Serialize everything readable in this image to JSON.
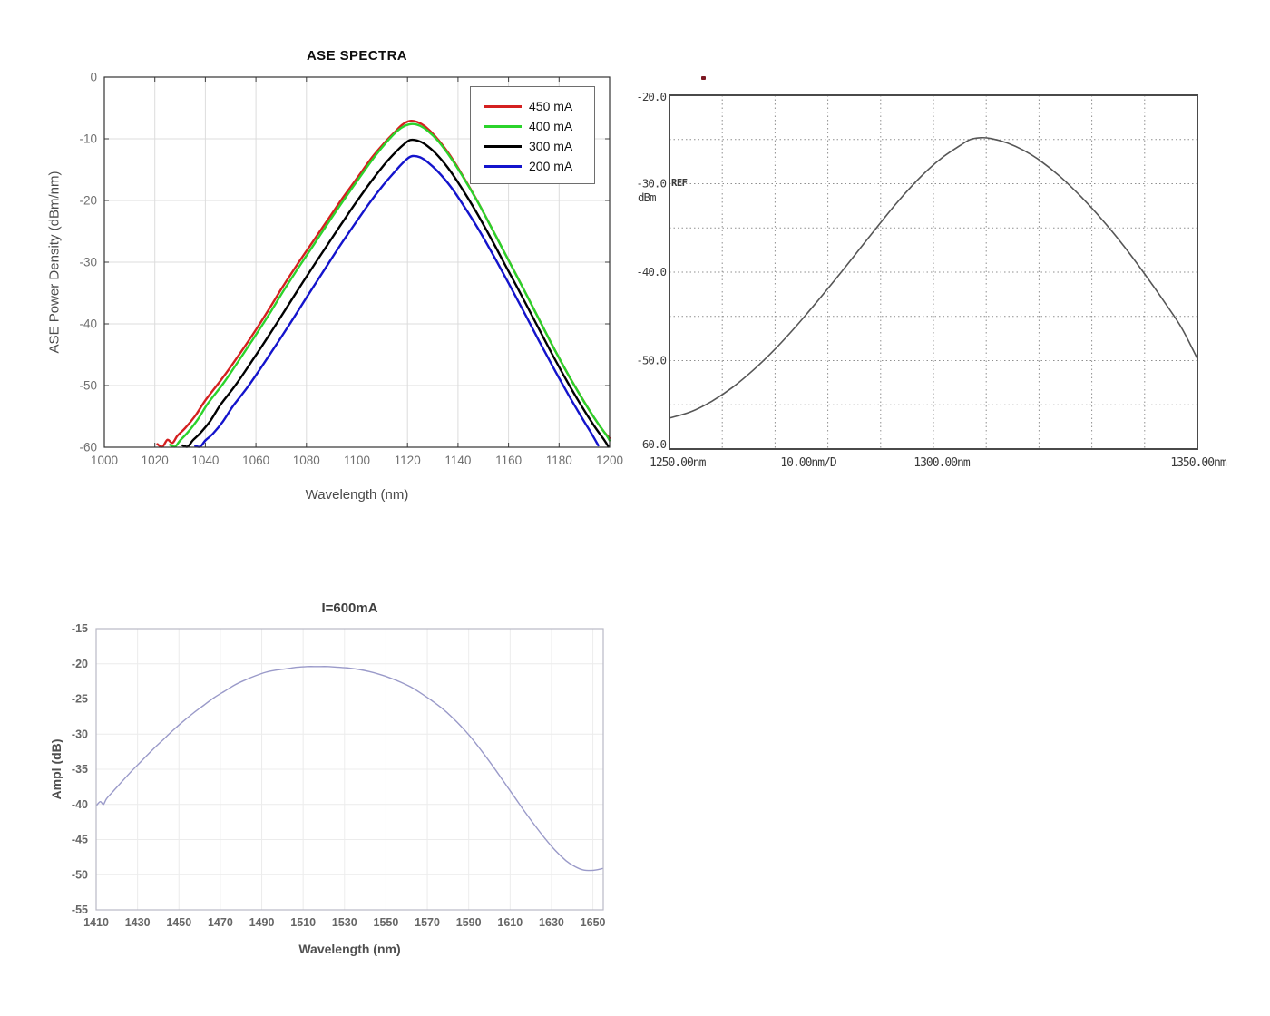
{
  "page": {
    "background": "#ffffff"
  },
  "chart_data": [
    {
      "type": "line",
      "title": "ASE SPECTRA",
      "xlabel": "Wavelength (nm)",
      "ylabel": "ASE Power Density (dBm/nm)",
      "x_range": [
        1000,
        1200
      ],
      "y_range": [
        -60,
        0
      ],
      "x_ticks": [
        1000,
        1020,
        1040,
        1060,
        1080,
        1100,
        1120,
        1140,
        1160,
        1180,
        1200
      ],
      "y_ticks": [
        0,
        -10,
        -20,
        -30,
        -40,
        -50,
        -60
      ],
      "grid": true,
      "legend_position": "top-right",
      "series": [
        {
          "name": "450 mA",
          "color": "#d42020",
          "points": [
            [
              1021,
              -59.5
            ],
            [
              1023,
              -59.9
            ],
            [
              1025,
              -58.8
            ],
            [
              1027,
              -59.3
            ],
            [
              1029,
              -58.1
            ],
            [
              1032,
              -56.9
            ],
            [
              1036,
              -54.9
            ],
            [
              1040,
              -52.4
            ],
            [
              1046,
              -49.2
            ],
            [
              1052,
              -45.8
            ],
            [
              1058,
              -42.2
            ],
            [
              1064,
              -38.4
            ],
            [
              1070,
              -34.4
            ],
            [
              1076,
              -30.6
            ],
            [
              1082,
              -27
            ],
            [
              1088,
              -23.4
            ],
            [
              1094,
              -19.8
            ],
            [
              1100,
              -16.4
            ],
            [
              1106,
              -13
            ],
            [
              1111,
              -10.6
            ],
            [
              1115,
              -8.9
            ],
            [
              1118,
              -7.7
            ],
            [
              1121,
              -7.1
            ],
            [
              1124,
              -7.3
            ],
            [
              1127,
              -8
            ],
            [
              1131,
              -9.6
            ],
            [
              1136,
              -12.2
            ],
            [
              1141,
              -15.4
            ],
            [
              1147,
              -19.6
            ],
            [
              1153,
              -24.2
            ],
            [
              1159,
              -28.9
            ],
            [
              1165,
              -33.6
            ],
            [
              1171,
              -38.4
            ],
            [
              1177,
              -43.2
            ],
            [
              1183,
              -47.8
            ],
            [
              1189,
              -52
            ],
            [
              1194,
              -55.3
            ],
            [
              1198,
              -57.6
            ],
            [
              1200,
              -58.5
            ]
          ]
        },
        {
          "name": "400 mA",
          "color": "#2bd32b",
          "points": [
            [
              1026,
              -59.6
            ],
            [
              1028,
              -59.9
            ],
            [
              1030,
              -58.9
            ],
            [
              1033,
              -57.6
            ],
            [
              1037,
              -55.5
            ],
            [
              1041,
              -52.9
            ],
            [
              1047,
              -49.7
            ],
            [
              1053,
              -46.1
            ],
            [
              1059,
              -42.4
            ],
            [
              1065,
              -38.6
            ],
            [
              1071,
              -34.6
            ],
            [
              1077,
              -30.8
            ],
            [
              1083,
              -27.1
            ],
            [
              1089,
              -23.4
            ],
            [
              1095,
              -19.8
            ],
            [
              1101,
              -16.3
            ],
            [
              1107,
              -12.9
            ],
            [
              1112,
              -10.4
            ],
            [
              1116,
              -8.7
            ],
            [
              1119,
              -7.9
            ],
            [
              1122,
              -7.6
            ],
            [
              1125,
              -7.9
            ],
            [
              1128,
              -8.7
            ],
            [
              1132,
              -10.3
            ],
            [
              1137,
              -13
            ],
            [
              1142,
              -16.2
            ],
            [
              1148,
              -20.4
            ],
            [
              1154,
              -25
            ],
            [
              1160,
              -29.7
            ],
            [
              1166,
              -34.4
            ],
            [
              1172,
              -39.2
            ],
            [
              1178,
              -44
            ],
            [
              1184,
              -48.5
            ],
            [
              1190,
              -52.7
            ],
            [
              1195,
              -55.9
            ],
            [
              1199,
              -58.2
            ],
            [
              1200,
              -58.9
            ]
          ]
        },
        {
          "name": "300 mA",
          "color": "#000000",
          "points": [
            [
              1031,
              -59.7
            ],
            [
              1033,
              -59.9
            ],
            [
              1035,
              -58.9
            ],
            [
              1038,
              -57.7
            ],
            [
              1042,
              -55.7
            ],
            [
              1046,
              -53.1
            ],
            [
              1052,
              -49.9
            ],
            [
              1058,
              -46.3
            ],
            [
              1064,
              -42.6
            ],
            [
              1070,
              -38.8
            ],
            [
              1076,
              -34.9
            ],
            [
              1082,
              -31.1
            ],
            [
              1088,
              -27.4
            ],
            [
              1094,
              -23.7
            ],
            [
              1100,
              -20.1
            ],
            [
              1106,
              -16.7
            ],
            [
              1111,
              -14.1
            ],
            [
              1115,
              -12.3
            ],
            [
              1118,
              -11.1
            ],
            [
              1121,
              -10.2
            ],
            [
              1124,
              -10.3
            ],
            [
              1127,
              -10.9
            ],
            [
              1131,
              -12.3
            ],
            [
              1136,
              -14.7
            ],
            [
              1141,
              -17.7
            ],
            [
              1147,
              -21.7
            ],
            [
              1153,
              -26.1
            ],
            [
              1159,
              -30.7
            ],
            [
              1165,
              -35.3
            ],
            [
              1171,
              -40
            ],
            [
              1177,
              -44.7
            ],
            [
              1183,
              -49.2
            ],
            [
              1189,
              -53.4
            ],
            [
              1194,
              -56.6
            ],
            [
              1198,
              -58.9
            ],
            [
              1199.5,
              -59.9
            ]
          ]
        },
        {
          "name": "200 mA",
          "color": "#1414cc",
          "points": [
            [
              1036,
              -59.8
            ],
            [
              1038,
              -59.9
            ],
            [
              1040,
              -58.9
            ],
            [
              1043,
              -57.8
            ],
            [
              1047,
              -55.8
            ],
            [
              1051,
              -53.3
            ],
            [
              1057,
              -50.1
            ],
            [
              1063,
              -46.5
            ],
            [
              1069,
              -42.8
            ],
            [
              1075,
              -39
            ],
            [
              1081,
              -35.1
            ],
            [
              1087,
              -31.3
            ],
            [
              1093,
              -27.5
            ],
            [
              1099,
              -23.9
            ],
            [
              1105,
              -20.4
            ],
            [
              1110,
              -17.7
            ],
            [
              1114,
              -15.8
            ],
            [
              1117,
              -14.4
            ],
            [
              1120,
              -13.2
            ],
            [
              1122,
              -12.8
            ],
            [
              1125,
              -13
            ],
            [
              1128,
              -13.8
            ],
            [
              1132,
              -15.3
            ],
            [
              1137,
              -17.7
            ],
            [
              1142,
              -20.7
            ],
            [
              1148,
              -24.6
            ],
            [
              1154,
              -28.9
            ],
            [
              1160,
              -33.4
            ],
            [
              1166,
              -38
            ],
            [
              1172,
              -42.7
            ],
            [
              1178,
              -47.3
            ],
            [
              1184,
              -51.7
            ],
            [
              1189,
              -55.2
            ],
            [
              1193,
              -57.9
            ],
            [
              1195.5,
              -59.7
            ]
          ]
        }
      ]
    },
    {
      "type": "line",
      "title": "",
      "x_range": [
        1250,
        1350
      ],
      "y_range": [
        -60,
        -20
      ],
      "x_axis_texts": [
        "1250.00nm",
        "10.00nm/D",
        "1300.00nm",
        "1350.00nm"
      ],
      "y_tick_labels": [
        "-20.0",
        "-30.0",
        "-40.0",
        "-50.0",
        "-60.0"
      ],
      "y_tick_values": [
        -20,
        -30,
        -40,
        -50,
        -60
      ],
      "ref_label": "REF",
      "unit_label": "dBm",
      "grid": "dotted",
      "marker_color": "#7c1822",
      "series": [
        {
          "color": "#565656",
          "points": [
            [
              1250,
              -56.5
            ],
            [
              1254,
              -55.8
            ],
            [
              1258,
              -54.6
            ],
            [
              1262,
              -53
            ],
            [
              1266,
              -51
            ],
            [
              1270,
              -48.7
            ],
            [
              1274,
              -46.1
            ],
            [
              1278,
              -43.3
            ],
            [
              1282,
              -40.4
            ],
            [
              1286,
              -37.4
            ],
            [
              1290,
              -34.4
            ],
            [
              1293,
              -32.2
            ],
            [
              1296,
              -30.2
            ],
            [
              1299,
              -28.4
            ],
            [
              1302,
              -26.9
            ],
            [
              1305,
              -25.7
            ],
            [
              1307,
              -25
            ],
            [
              1309,
              -24.8
            ],
            [
              1311,
              -24.9
            ],
            [
              1314,
              -25.4
            ],
            [
              1317,
              -26.2
            ],
            [
              1320,
              -27.3
            ],
            [
              1324,
              -29.2
            ],
            [
              1328,
              -31.5
            ],
            [
              1332,
              -34.1
            ],
            [
              1336,
              -37
            ],
            [
              1340,
              -40.2
            ],
            [
              1344,
              -43.6
            ],
            [
              1347,
              -46.3
            ],
            [
              1350,
              -49.8
            ]
          ]
        }
      ]
    },
    {
      "type": "line",
      "title": "I=600mA",
      "xlabel": "Wavelength (nm)",
      "ylabel": "Ampl (dB)",
      "x_range": [
        1410,
        1655
      ],
      "y_range": [
        -55,
        -15
      ],
      "x_ticks": [
        1410,
        1430,
        1450,
        1470,
        1490,
        1510,
        1530,
        1550,
        1570,
        1590,
        1610,
        1630,
        1650
      ],
      "y_ticks": [
        -15,
        -20,
        -25,
        -30,
        -35,
        -40,
        -45,
        -50,
        -55
      ],
      "grid": true,
      "series": [
        {
          "name": "I=600mA",
          "color": "#9a9ac9",
          "points": [
            [
              1410,
              -40.2
            ],
            [
              1412,
              -39.6
            ],
            [
              1413.5,
              -40
            ],
            [
              1415,
              -39.2
            ],
            [
              1418,
              -38.2
            ],
            [
              1422,
              -36.9
            ],
            [
              1427,
              -35.3
            ],
            [
              1432,
              -33.8
            ],
            [
              1437,
              -32.3
            ],
            [
              1442,
              -30.9
            ],
            [
              1447,
              -29.5
            ],
            [
              1452,
              -28.2
            ],
            [
              1457,
              -27
            ],
            [
              1462,
              -25.9
            ],
            [
              1467,
              -24.8
            ],
            [
              1472,
              -23.9
            ],
            [
              1477,
              -23
            ],
            [
              1482,
              -22.3
            ],
            [
              1487,
              -21.7
            ],
            [
              1492,
              -21.2
            ],
            [
              1497,
              -20.9
            ],
            [
              1502,
              -20.7
            ],
            [
              1507,
              -20.5
            ],
            [
              1512,
              -20.4
            ],
            [
              1517,
              -20.4
            ],
            [
              1522,
              -20.4
            ],
            [
              1527,
              -20.5
            ],
            [
              1532,
              -20.6
            ],
            [
              1537,
              -20.8
            ],
            [
              1542,
              -21.1
            ],
            [
              1547,
              -21.5
            ],
            [
              1552,
              -22
            ],
            [
              1557,
              -22.6
            ],
            [
              1562,
              -23.3
            ],
            [
              1567,
              -24.2
            ],
            [
              1572,
              -25.2
            ],
            [
              1577,
              -26.3
            ],
            [
              1582,
              -27.6
            ],
            [
              1587,
              -29.1
            ],
            [
              1592,
              -30.8
            ],
            [
              1597,
              -32.7
            ],
            [
              1602,
              -34.7
            ],
            [
              1607,
              -36.8
            ],
            [
              1612,
              -38.9
            ],
            [
              1617,
              -41
            ],
            [
              1622,
              -43
            ],
            [
              1627,
              -44.9
            ],
            [
              1632,
              -46.6
            ],
            [
              1637,
              -48
            ],
            [
              1641,
              -48.8
            ],
            [
              1645,
              -49.3
            ],
            [
              1649,
              -49.4
            ],
            [
              1652,
              -49.3
            ],
            [
              1655,
              -49.1
            ]
          ]
        }
      ]
    }
  ]
}
